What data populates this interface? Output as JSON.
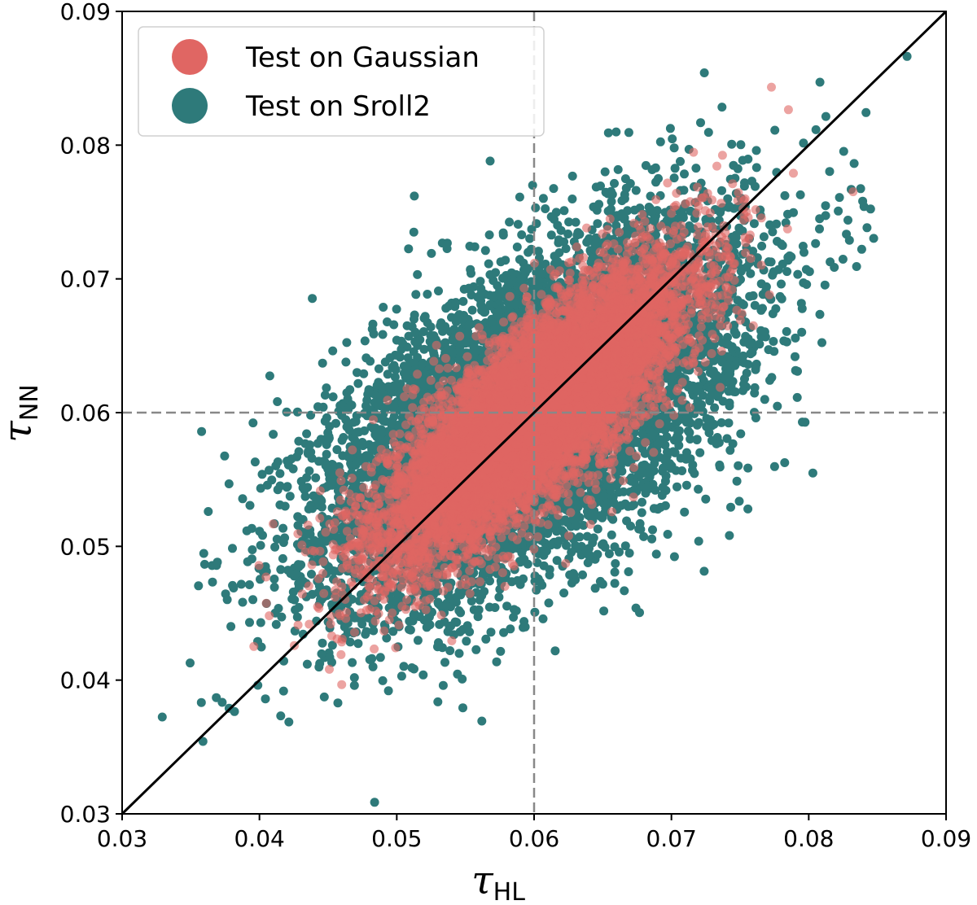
{
  "chart_data": {
    "type": "scatter",
    "title": "",
    "xlabel": {
      "symbol": "τ",
      "subscript": "HL"
    },
    "ylabel": {
      "symbol": "τ",
      "subscript": "NN"
    },
    "xlim": [
      0.03,
      0.09
    ],
    "ylim": [
      0.03,
      0.09
    ],
    "xticks": [
      "0.03",
      "0.04",
      "0.05",
      "0.06",
      "0.07",
      "0.08",
      "0.09"
    ],
    "yticks": [
      "0.03",
      "0.04",
      "0.05",
      "0.06",
      "0.07",
      "0.08",
      "0.09"
    ],
    "grid": false,
    "legend_position": "top-left",
    "reference_lines": {
      "vertical_x": 0.06,
      "horizontal_y": 0.06,
      "identity_line": true
    },
    "series": [
      {
        "name": "Test on Sroll2",
        "color": "#2e7a7a",
        "distribution": {
          "center": [
            0.06,
            0.06
          ],
          "sigma": [
            0.0075,
            0.0068
          ],
          "correlation": 0.6,
          "count": 9000
        }
      },
      {
        "name": "Test on Gaussian",
        "color": "#e06663",
        "distribution": {
          "center": [
            0.06,
            0.06
          ],
          "sigma": [
            0.0055,
            0.0055
          ],
          "correlation": 0.8,
          "count": 9000
        }
      }
    ],
    "legend": [
      {
        "label": "Test on Gaussian",
        "color": "#e06663"
      },
      {
        "label": "Test on Sroll2",
        "color": "#2e7a7a"
      }
    ]
  }
}
